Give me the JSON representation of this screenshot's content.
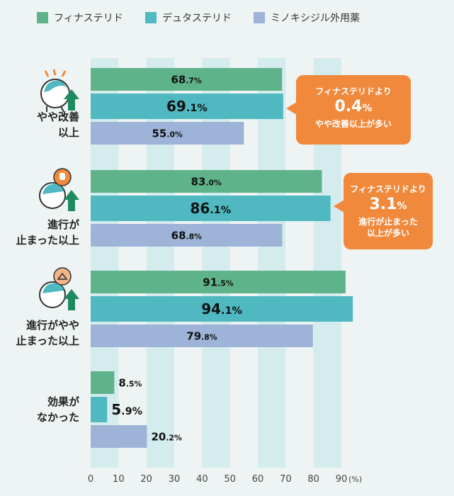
{
  "legend": [
    {
      "label": "フィナステリド",
      "color": "#5fb38b"
    },
    {
      "label": "デュタステリド",
      "color": "#4fb8c0"
    },
    {
      "label": "ミノキシジル外用薬",
      "color": "#9db4d8"
    }
  ],
  "chart_data": {
    "type": "bar",
    "orientation": "horizontal",
    "categories": [
      [
        "やや改善",
        "以上"
      ],
      [
        "進行が",
        "止まった以上"
      ],
      [
        "進行がやや",
        "止まった以上"
      ],
      [
        "効果が",
        "なかった"
      ]
    ],
    "series": [
      {
        "name": "フィナステリド",
        "values": [
          68.7,
          83.0,
          91.5,
          8.5
        ],
        "color": "#5fb38b"
      },
      {
        "name": "デュタステリド",
        "values": [
          69.1,
          86.1,
          94.1,
          5.9
        ],
        "color": "#4fb8c0"
      },
      {
        "name": "ミノキシジル外用薬",
        "values": [
          55.0,
          68.8,
          79.8,
          20.2
        ],
        "color": "#9db4d8"
      }
    ],
    "xlim": [
      0,
      90
    ],
    "xticks": [
      0,
      10,
      20,
      30,
      40,
      50,
      60,
      70,
      80,
      90
    ],
    "xunit": "(%)",
    "grid": "alternating column bands"
  },
  "callouts": [
    {
      "line1": "フィナステリドより",
      "value": "0.4",
      "unit": "%",
      "line3": "やや改善以上が多い",
      "line4": ""
    },
    {
      "line1": "フィナステリドより",
      "value": "3.1",
      "unit": "%",
      "line3": "進行が止まった",
      "line4": "以上が多い"
    }
  ],
  "icons": [
    "head-improve-icon",
    "head-stop-icon",
    "head-slow-icon"
  ]
}
